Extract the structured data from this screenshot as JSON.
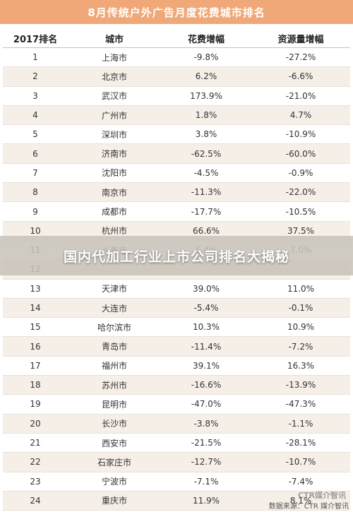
{
  "title": "8月传统户外广告月度花费城市排名",
  "columns": [
    "2017排名",
    "城市",
    "花费增幅",
    "资源量增幅"
  ],
  "rows": [
    [
      "1",
      "上海市",
      "-9.8%",
      "-27.2%"
    ],
    [
      "2",
      "北京市",
      "6.2%",
      "-6.6%"
    ],
    [
      "3",
      "武汉市",
      "173.9%",
      "-21.0%"
    ],
    [
      "4",
      "广州市",
      "1.8%",
      "4.7%"
    ],
    [
      "5",
      "深圳市",
      "3.8%",
      "-10.9%"
    ],
    [
      "6",
      "济南市",
      "-62.5%",
      "-60.0%"
    ],
    [
      "7",
      "沈阳市",
      "-4.5%",
      "-0.9%"
    ],
    [
      "8",
      "南京市",
      "-11.3%",
      "-22.0%"
    ],
    [
      "9",
      "成都市",
      "-17.7%",
      "-10.5%"
    ],
    [
      "10",
      "杭州市",
      "66.6%",
      "37.5%"
    ],
    [
      "11",
      "长春市",
      "5.4%",
      "7.0%"
    ],
    [
      "12",
      "",
      "",
      ""
    ],
    [
      "13",
      "天津市",
      "39.0%",
      "11.0%"
    ],
    [
      "14",
      "大连市",
      "-5.4%",
      "-0.1%"
    ],
    [
      "15",
      "哈尔滨市",
      "10.3%",
      "10.9%"
    ],
    [
      "16",
      "青岛市",
      "-11.4%",
      "-7.2%"
    ],
    [
      "17",
      "福州市",
      "39.1%",
      "16.3%"
    ],
    [
      "18",
      "苏州市",
      "-16.6%",
      "-13.9%"
    ],
    [
      "19",
      "昆明市",
      "-47.0%",
      "-47.3%"
    ],
    [
      "20",
      "长沙市",
      "-3.8%",
      "-1.1%"
    ],
    [
      "21",
      "西安市",
      "-21.5%",
      "-28.1%"
    ],
    [
      "22",
      "石家庄市",
      "-12.7%",
      "-10.7%"
    ],
    [
      "23",
      "宁波市",
      "-7.1%",
      "-7.4%"
    ],
    [
      "24",
      "重庆市",
      "11.9%",
      "8.1%"
    ]
  ],
  "overlay_title": "国内代加工行业上市公司排名大揭秘",
  "footer_source": "数据来源：CTR 媒介智讯",
  "watermark": "CTR媒介智讯",
  "colors": {
    "title_bg": "#f0a878",
    "row_alt": "#f6efe7"
  }
}
